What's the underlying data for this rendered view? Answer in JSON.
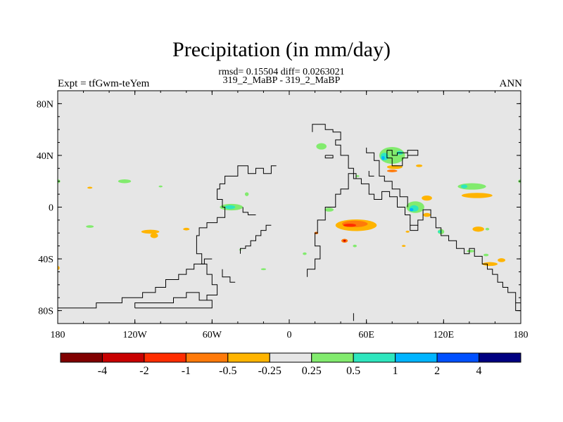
{
  "chart_data": {
    "type": "heatmap",
    "title": "Precipitation (in mm/day)",
    "subtitle_stats": "rmsd= 0.15504 diff= 0.0263021",
    "subtitle_runs": "319_2_MaBP - 319_2_MaBP",
    "left_label": "Expt = tfGwm-teYem",
    "right_label": "ANN",
    "xlim": [
      -180,
      180
    ],
    "ylim": [
      -90,
      90
    ],
    "x_ticks": [
      {
        "value": -180,
        "label": "180"
      },
      {
        "value": -120,
        "label": "120W"
      },
      {
        "value": -60,
        "label": "60W"
      },
      {
        "value": 0,
        "label": "0"
      },
      {
        "value": 60,
        "label": "60E"
      },
      {
        "value": 120,
        "label": "120E"
      },
      {
        "value": 180,
        "label": "180"
      }
    ],
    "y_ticks": [
      {
        "value": 80,
        "label": "80N"
      },
      {
        "value": 40,
        "label": "40N"
      },
      {
        "value": 0,
        "label": "0"
      },
      {
        "value": -40,
        "label": "40S"
      },
      {
        "value": -80,
        "label": "80S"
      }
    ],
    "colorbar": {
      "colors": [
        "#800000",
        "#c80000",
        "#ff2d00",
        "#ff7a0a",
        "#ffb400",
        "#e6e6e6",
        "#82eb6e",
        "#2ee6be",
        "#00b4ff",
        "#0050ff",
        "#000080"
      ],
      "labels": [
        "-4",
        "-2",
        "-1",
        "-0.5",
        "-0.25",
        "0.25",
        "0.5",
        "1",
        "2",
        "4"
      ]
    },
    "anomalies": [
      {
        "lon": 25,
        "lat": 47,
        "w": 8,
        "h": 5,
        "color": "#82eb6e"
      },
      {
        "lon": 80,
        "lat": 40,
        "w": 20,
        "h": 13,
        "color": "#82eb6e"
      },
      {
        "lon": 74,
        "lat": 39,
        "w": 6,
        "h": 6,
        "color": "#2ee6be"
      },
      {
        "lon": 73,
        "lat": 38,
        "w": 2.5,
        "h": 3,
        "color": "#00b4ff"
      },
      {
        "lon": 86,
        "lat": 42,
        "w": 5,
        "h": 3,
        "color": "#2ee6be"
      },
      {
        "lon": 82,
        "lat": 31,
        "w": 12,
        "h": 3,
        "color": "#ffb400"
      },
      {
        "lon": 80,
        "lat": 28,
        "w": 8,
        "h": 2,
        "color": "#ff7a0a"
      },
      {
        "lon": 101,
        "lat": 32,
        "w": 5,
        "h": 2,
        "color": "#ffb400"
      },
      {
        "lon": 142,
        "lat": 16,
        "w": 22,
        "h": 5,
        "color": "#82eb6e"
      },
      {
        "lon": 136,
        "lat": 16,
        "w": 5,
        "h": 3,
        "color": "#2ee6be"
      },
      {
        "lon": 146,
        "lat": 9,
        "w": 24,
        "h": 4,
        "color": "#ffb400"
      },
      {
        "lon": 107,
        "lat": 7,
        "w": 8,
        "h": 4,
        "color": "#ffb400"
      },
      {
        "lon": 98,
        "lat": 0,
        "w": 14,
        "h": 9,
        "color": "#82eb6e"
      },
      {
        "lon": 97,
        "lat": -1,
        "w": 7,
        "h": 5,
        "color": "#2ee6be"
      },
      {
        "lon": 95,
        "lat": -2,
        "w": 3,
        "h": 2.5,
        "color": "#00b4ff"
      },
      {
        "lon": 107,
        "lat": -6,
        "w": 6,
        "h": 3,
        "color": "#ffb400"
      },
      {
        "lon": 118,
        "lat": -19,
        "w": 5,
        "h": 4,
        "color": "#82eb6e"
      },
      {
        "lon": 117,
        "lat": -19,
        "w": 3,
        "h": 2,
        "color": "#2ee6be"
      },
      {
        "lon": 147,
        "lat": -17,
        "w": 9,
        "h": 4,
        "color": "#ffb400"
      },
      {
        "lon": 154,
        "lat": -17,
        "w": 3,
        "h": 2,
        "color": "#82eb6e"
      },
      {
        "lon": 52,
        "lat": -14,
        "w": 32,
        "h": 9,
        "color": "#ffb400"
      },
      {
        "lon": 51,
        "lat": -13,
        "w": 20,
        "h": 5,
        "color": "#ff7a0a"
      },
      {
        "lon": 47,
        "lat": -14,
        "w": 10,
        "h": 2.5,
        "color": "#ff2d00"
      },
      {
        "lon": 43,
        "lat": -26,
        "w": 5,
        "h": 3,
        "color": "#ff7a0a"
      },
      {
        "lon": 43,
        "lat": -26,
        "w": 2,
        "h": 1.5,
        "color": "#c80000"
      },
      {
        "lon": 51,
        "lat": -30,
        "w": 3,
        "h": 2,
        "color": "#82eb6e"
      },
      {
        "lon": 89,
        "lat": -30,
        "w": 3,
        "h": 1.5,
        "color": "#ffb400"
      },
      {
        "lon": 141,
        "lat": -34,
        "w": 6,
        "h": 2,
        "color": "#82eb6e"
      },
      {
        "lon": 165,
        "lat": -41,
        "w": 6,
        "h": 3,
        "color": "#ffb400"
      },
      {
        "lon": 156,
        "lat": -44,
        "w": 12,
        "h": 3,
        "color": "#ffb400"
      },
      {
        "lon": 153,
        "lat": -37,
        "w": 4,
        "h": 2,
        "color": "#82eb6e"
      },
      {
        "lon": -45,
        "lat": 0,
        "w": 18,
        "h": 5,
        "color": "#82eb6e"
      },
      {
        "lon": -46,
        "lat": 0,
        "w": 8,
        "h": 3,
        "color": "#2ee6be"
      },
      {
        "lon": -33,
        "lat": 10,
        "w": 3,
        "h": 3,
        "color": "#82eb6e"
      },
      {
        "lon": -128,
        "lat": 20,
        "w": 10,
        "h": 3,
        "color": "#82eb6e"
      },
      {
        "lon": -155,
        "lat": 15,
        "w": 4,
        "h": 1.5,
        "color": "#ffb400"
      },
      {
        "lon": -100,
        "lat": 16,
        "w": 3,
        "h": 1.5,
        "color": "#82eb6e"
      },
      {
        "lon": -180,
        "lat": 20,
        "w": 4,
        "h": 3,
        "color": "#82eb6e"
      },
      {
        "lon": 180,
        "lat": 20,
        "w": 4,
        "h": 3,
        "color": "#82eb6e"
      },
      {
        "lon": -108,
        "lat": -19,
        "w": 14,
        "h": 3,
        "color": "#ffb400"
      },
      {
        "lon": -105,
        "lat": -22,
        "w": 6,
        "h": 4,
        "color": "#ffb400"
      },
      {
        "lon": -80,
        "lat": -17,
        "w": 5,
        "h": 2,
        "color": "#ffb400"
      },
      {
        "lon": -155,
        "lat": -15,
        "w": 6,
        "h": 2,
        "color": "#82eb6e"
      },
      {
        "lon": -180,
        "lat": -47,
        "w": 3,
        "h": 3,
        "color": "#ffb400"
      },
      {
        "lon": -20,
        "lat": -48,
        "w": 4,
        "h": 1.5,
        "color": "#82eb6e"
      },
      {
        "lon": 12,
        "lat": -36,
        "w": 3,
        "h": 2,
        "color": "#82eb6e"
      },
      {
        "lon": -38,
        "lat": -33,
        "w": 2,
        "h": 1,
        "color": "#82eb6e"
      },
      {
        "lon": 31,
        "lat": -2,
        "w": 7,
        "h": 3,
        "color": "#82eb6e"
      },
      {
        "lon": 21,
        "lat": -20,
        "w": 3,
        "h": 2,
        "color": "#ff7a0a"
      },
      {
        "lon": 53,
        "lat": 24,
        "w": 3,
        "h": 1.5,
        "color": "#82eb6e"
      },
      {
        "lon": 92,
        "lat": -19,
        "w": 3,
        "h": 1.5,
        "color": "#ffb400"
      }
    ],
    "continents": [
      [
        [
          14,
          -54
        ],
        [
          14,
          -48
        ],
        [
          20,
          -48
        ],
        [
          20,
          -40
        ],
        [
          24,
          -40
        ],
        [
          24,
          -30
        ],
        [
          20,
          -30
        ],
        [
          20,
          -20
        ],
        [
          22,
          -20
        ],
        [
          22,
          -10
        ],
        [
          28,
          -10
        ],
        [
          28,
          0
        ],
        [
          36,
          0
        ],
        [
          36,
          10
        ],
        [
          40,
          10
        ],
        [
          40,
          14
        ],
        [
          46,
          14
        ],
        [
          46,
          26
        ],
        [
          52,
          26
        ],
        [
          52,
          22
        ],
        [
          56,
          22
        ],
        [
          56,
          18
        ],
        [
          62,
          18
        ],
        [
          62,
          10
        ],
        [
          66,
          10
        ],
        [
          66,
          6
        ],
        [
          72,
          6
        ],
        [
          72,
          12
        ],
        [
          78,
          12
        ],
        [
          78,
          8
        ],
        [
          84,
          8
        ],
        [
          84,
          0
        ],
        [
          90,
          0
        ],
        [
          90,
          -6
        ],
        [
          94,
          -6
        ],
        [
          94,
          -14
        ],
        [
          100,
          -14
        ],
        [
          100,
          -10
        ],
        [
          104,
          -10
        ],
        [
          104,
          -2
        ],
        [
          110,
          -2
        ],
        [
          110,
          -8
        ],
        [
          114,
          -8
        ],
        [
          114,
          -16
        ],
        [
          118,
          -16
        ],
        [
          118,
          -22
        ],
        [
          124,
          -22
        ],
        [
          124,
          -26
        ],
        [
          130,
          -26
        ],
        [
          130,
          -32
        ],
        [
          136,
          -32
        ],
        [
          136,
          -36
        ],
        [
          140,
          -36
        ],
        [
          140,
          -32
        ],
        [
          144,
          -32
        ],
        [
          144,
          -38
        ],
        [
          150,
          -38
        ],
        [
          150,
          -44
        ],
        [
          154,
          -44
        ],
        [
          154,
          -48
        ],
        [
          158,
          -48
        ],
        [
          158,
          -52
        ],
        [
          162,
          -52
        ],
        [
          162,
          -58
        ],
        [
          166,
          -58
        ],
        [
          166,
          -62
        ],
        [
          170,
          -62
        ],
        [
          170,
          -66
        ],
        [
          176,
          -66
        ],
        [
          176,
          -74
        ],
        [
          180,
          -74
        ]
      ],
      [
        [
          18,
          58
        ],
        [
          18,
          64
        ],
        [
          28,
          64
        ],
        [
          28,
          60
        ],
        [
          34,
          60
        ],
        [
          34,
          58
        ],
        [
          40,
          58
        ],
        [
          40,
          52
        ],
        [
          36,
          52
        ],
        [
          36,
          48
        ],
        [
          40,
          48
        ],
        [
          40,
          40
        ],
        [
          46,
          40
        ],
        [
          46,
          30
        ],
        [
          50,
          30
        ],
        [
          50,
          22
        ],
        [
          56,
          22
        ]
      ],
      [
        [
          60,
          46
        ],
        [
          60,
          42
        ],
        [
          66,
          42
        ],
        [
          66,
          36
        ],
        [
          70,
          36
        ],
        [
          70,
          24
        ],
        [
          74,
          24
        ],
        [
          74,
          20
        ],
        [
          80,
          20
        ],
        [
          80,
          14
        ],
        [
          86,
          14
        ],
        [
          86,
          8
        ],
        [
          92,
          8
        ],
        [
          92,
          0
        ]
      ],
      [
        [
          76,
          44
        ],
        [
          80,
          44
        ],
        [
          80,
          40
        ],
        [
          84,
          40
        ],
        [
          84,
          42
        ],
        [
          92,
          42
        ],
        [
          92,
          40
        ],
        [
          100,
          40
        ],
        [
          100,
          44
        ],
        [
          92,
          44
        ],
        [
          92,
          38
        ],
        [
          88,
          38
        ],
        [
          88,
          32
        ],
        [
          80,
          32
        ],
        [
          80,
          38
        ],
        [
          76,
          38
        ],
        [
          76,
          44
        ]
      ],
      [
        [
          -60,
          -56
        ],
        [
          -60,
          -52
        ],
        [
          -64,
          -52
        ],
        [
          -64,
          -44
        ],
        [
          -68,
          -44
        ],
        [
          -68,
          -36
        ],
        [
          -72,
          -36
        ],
        [
          -72,
          -22
        ],
        [
          -70,
          -22
        ],
        [
          -70,
          -16
        ],
        [
          -64,
          -16
        ],
        [
          -64,
          -12
        ],
        [
          -56,
          -12
        ],
        [
          -56,
          -8
        ],
        [
          -50,
          -8
        ],
        [
          -50,
          0
        ],
        [
          -52,
          0
        ],
        [
          -52,
          6
        ],
        [
          -56,
          6
        ],
        [
          -56,
          14
        ],
        [
          -54,
          14
        ],
        [
          -54,
          18
        ],
        [
          -50,
          18
        ],
        [
          -50,
          24
        ],
        [
          -40,
          24
        ],
        [
          -40,
          32
        ],
        [
          -32,
          32
        ],
        [
          -32,
          26
        ],
        [
          -26,
          26
        ],
        [
          -26,
          30
        ],
        [
          -20,
          30
        ],
        [
          -20,
          26
        ],
        [
          -14,
          26
        ],
        [
          -14,
          32
        ],
        [
          -10,
          32
        ]
      ],
      [
        [
          -38,
          -36
        ],
        [
          -38,
          -32
        ],
        [
          -34,
          -32
        ],
        [
          -34,
          -30
        ],
        [
          -30,
          -30
        ],
        [
          -30,
          -26
        ],
        [
          -26,
          -26
        ],
        [
          -26,
          -22
        ],
        [
          -22,
          -22
        ],
        [
          -22,
          -18
        ],
        [
          -18,
          -18
        ],
        [
          -18,
          -14
        ],
        [
          -14,
          -14
        ]
      ],
      [
        [
          -180,
          -78
        ],
        [
          -150,
          -78
        ],
        [
          -150,
          -74
        ],
        [
          -130,
          -74
        ],
        [
          -130,
          -70
        ],
        [
          -114,
          -70
        ],
        [
          -114,
          -66
        ],
        [
          -104,
          -66
        ],
        [
          -104,
          -62
        ],
        [
          -96,
          -62
        ],
        [
          -96,
          -56
        ],
        [
          -86,
          -56
        ],
        [
          -86,
          -52
        ],
        [
          -80,
          -52
        ],
        [
          -80,
          -48
        ],
        [
          -74,
          -48
        ],
        [
          -74,
          -44
        ],
        [
          -66,
          -44
        ],
        [
          -66,
          -40
        ],
        [
          -60,
          -40
        ]
      ],
      [
        [
          -120,
          -78
        ],
        [
          -60,
          -78
        ],
        [
          -60,
          -72
        ],
        [
          -70,
          -72
        ],
        [
          -70,
          -66
        ],
        [
          -80,
          -66
        ],
        [
          -80,
          -70
        ],
        [
          -90,
          -70
        ],
        [
          -90,
          -74
        ],
        [
          -120,
          -74
        ],
        [
          -120,
          -78
        ]
      ],
      [
        [
          -60,
          -56
        ],
        [
          -60,
          -60
        ],
        [
          -56,
          -60
        ],
        [
          -56,
          -68
        ],
        [
          -64,
          -68
        ],
        [
          -64,
          -72
        ]
      ],
      [
        [
          -52,
          -48
        ],
        [
          -52,
          -54
        ],
        [
          -46,
          -54
        ],
        [
          -46,
          -58
        ],
        [
          -42,
          -58
        ]
      ],
      [
        [
          50,
          -88
        ],
        [
          50,
          -82
        ]
      ],
      [
        [
          176,
          -74
        ],
        [
          176,
          -80
        ],
        [
          180,
          -80
        ]
      ],
      [
        [
          28,
          40
        ],
        [
          34,
          40
        ],
        [
          34,
          38
        ],
        [
          28,
          38
        ],
        [
          28,
          40
        ]
      ],
      [
        [
          62,
          28
        ],
        [
          62,
          24
        ],
        [
          66,
          24
        ]
      ],
      [
        [
          -36,
          0
        ],
        [
          -36,
          -4
        ],
        [
          -32,
          -4
        ],
        [
          -32,
          -6
        ],
        [
          -26,
          -6
        ]
      ],
      [
        [
          94,
          -14
        ],
        [
          94,
          -18
        ],
        [
          100,
          -18
        ],
        [
          100,
          -14
        ]
      ]
    ]
  }
}
